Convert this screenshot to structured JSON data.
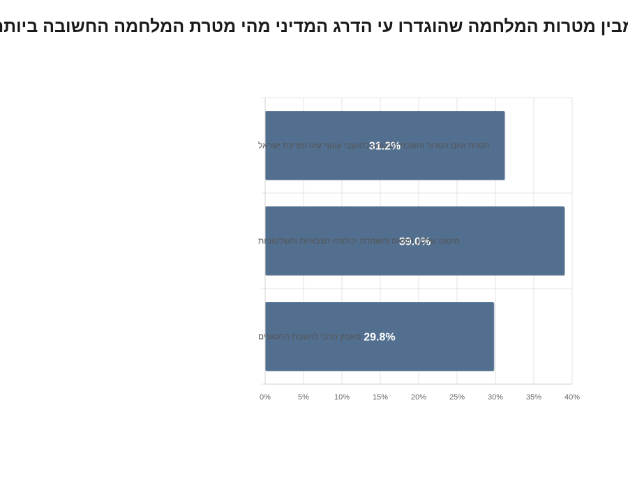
{
  "chart_data": {
    "type": "bar",
    "orientation": "horizontal",
    "title": "מבין מטרות המלחמה שהוגדרו עי הדרג המדיני מהי מטרת המלחמה החשובה ביותר",
    "categories": [
      "הסרת איום הטרור והשבת הבטחון לתושבי עוטף עזה ומדינת ישראל",
      "מיטוט שלטון חמאס והשמדת יכולותיו הצבאיות והשלטוניות",
      "מאמץ מרבי להשבת החטופים"
    ],
    "values": [
      31.2,
      39.0,
      29.8
    ],
    "data_labels": [
      "31.2%",
      "39.0%",
      "29.8%"
    ],
    "xlim": [
      0,
      40
    ],
    "x_ticks": [
      "0%",
      "5%",
      "10%",
      "15%",
      "20%",
      "25%",
      "30%",
      "35%",
      "40%"
    ],
    "x_tick_values": [
      0,
      5,
      10,
      15,
      20,
      25,
      30,
      35,
      40
    ],
    "grid": true,
    "bar_color": "#526f8f",
    "xlabel": "",
    "ylabel": ""
  }
}
